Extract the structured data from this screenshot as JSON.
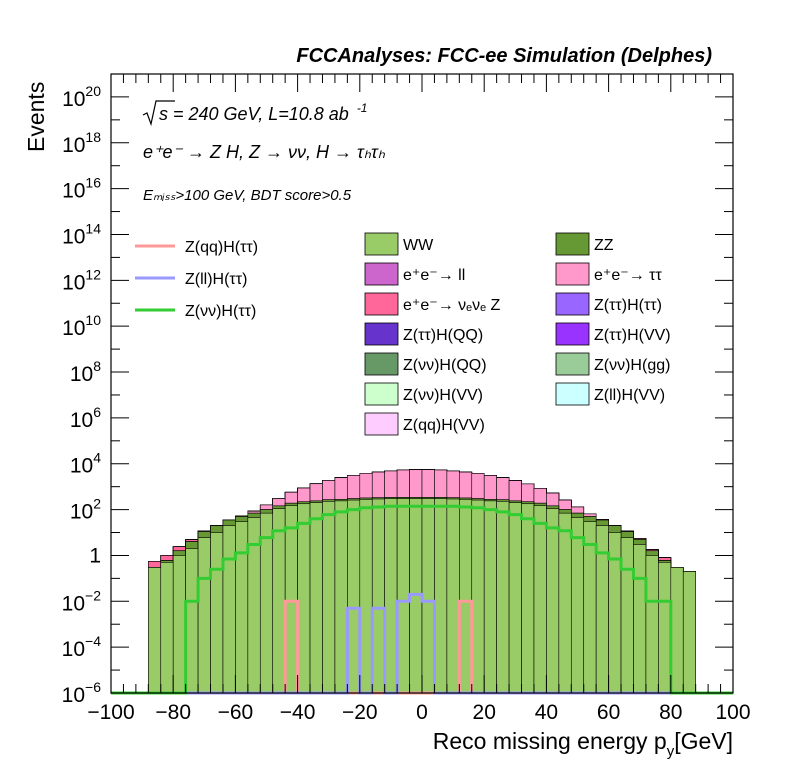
{
  "chart_data": {
    "type": "bar",
    "title": "FCCAnalyses: FCC-ee Simulation (Delphes)",
    "xlabel": "Reco missing energy p",
    "xlabel_sub": "y",
    "xlabel_unit": "[GeV]",
    "ylabel": "Events",
    "xlim": [
      -100,
      100
    ],
    "ylim": [
      1e-06,
      1e+21
    ],
    "yscale": "log",
    "x_ticks": [
      "−100",
      "−80",
      "−60",
      "−40",
      "−20",
      "0",
      "20",
      "40",
      "60",
      "80",
      "100"
    ],
    "annotations": {
      "energy_prefix": "s",
      "energy_text": " = 240 GeV, L=10.8 ab",
      "lumi_exp": "-1",
      "process_line": "e⁺e⁻ → Z H, Z → νν, H → τₕτₕ",
      "cuts_line": "Eₘᵢₛₛ>100 GeV, BDT score>0.5"
    },
    "bin_edges_range": [
      -100,
      100
    ],
    "bin_width": 4,
    "bin_centers": [
      -98,
      -94,
      -90,
      -86,
      -82,
      -78,
      -74,
      -70,
      -66,
      -62,
      -58,
      -54,
      -50,
      -46,
      -42,
      -38,
      -34,
      -30,
      -26,
      -22,
      -18,
      -14,
      -10,
      -6,
      -2,
      2,
      6,
      10,
      14,
      18,
      22,
      26,
      30,
      34,
      38,
      42,
      46,
      50,
      54,
      58,
      62,
      66,
      70,
      74,
      78,
      82,
      86,
      90,
      94,
      98
    ],
    "stack": [
      {
        "name": "WW",
        "color": "#99cc66",
        "values": [
          0,
          0,
          0,
          0.3,
          0.5,
          1,
          2,
          6,
          10,
          20,
          30,
          45,
          70,
          110,
          150,
          180,
          200,
          230,
          240,
          260,
          280,
          290,
          300,
          300,
          300,
          300,
          300,
          290,
          280,
          260,
          240,
          230,
          200,
          180,
          150,
          110,
          70,
          45,
          30,
          20,
          10,
          6,
          3,
          1,
          0.5,
          0.3,
          0.2,
          0,
          0,
          0
        ]
      },
      {
        "name": "ZZ",
        "color": "#669933",
        "values": [
          0,
          0,
          0,
          0,
          0.1,
          0.6,
          2,
          5,
          10,
          15,
          20,
          25,
          30,
          35,
          40,
          40,
          40,
          40,
          40,
          40,
          40,
          40,
          40,
          40,
          40,
          40,
          40,
          40,
          40,
          40,
          40,
          40,
          40,
          40,
          40,
          35,
          30,
          25,
          20,
          15,
          10,
          5,
          2,
          0.6,
          0.1,
          0,
          0,
          0,
          0,
          0
        ]
      },
      {
        "name": "e⁺e⁻→ ll",
        "color": "#cc66cc",
        "values": [
          0,
          0,
          0,
          0,
          0,
          0,
          0,
          0,
          0,
          0,
          0,
          0,
          0,
          0,
          0,
          0,
          0,
          0,
          0,
          0,
          0,
          0,
          0,
          0,
          0,
          0,
          0,
          0,
          0,
          0,
          0,
          0,
          0,
          0,
          0,
          0,
          0,
          0,
          0,
          0,
          0,
          0,
          0,
          0,
          0,
          0,
          0,
          0,
          0,
          0
        ]
      },
      {
        "name": "e⁺e⁻→ ττ",
        "color": "#ff99cc",
        "values": [
          0,
          0,
          0,
          0,
          0,
          0,
          0,
          0,
          0,
          0,
          2,
          15,
          60,
          160,
          380,
          650,
          1100,
          1600,
          2200,
          2800,
          3500,
          4000,
          4500,
          5000,
          5200,
          5200,
          5000,
          4500,
          4000,
          3500,
          2800,
          2200,
          1600,
          1100,
          650,
          380,
          160,
          60,
          15,
          2,
          0,
          0,
          0,
          0,
          0,
          0,
          0,
          0,
          0,
          0
        ]
      },
      {
        "name": "e⁺e⁻→ νₑνₑ Z",
        "color": "#ff6699",
        "values": [
          0,
          0,
          0,
          0.25,
          0.4,
          0.8,
          0.9,
          0.8,
          0.4,
          0.4,
          0.2,
          0.35,
          0.3,
          0.3,
          0.35,
          0.3,
          0.25,
          0.3,
          0.3,
          0.3,
          0.35,
          0.3,
          0.5,
          1.2,
          0.7,
          0.6,
          0.4,
          0.6,
          0.3,
          0.3,
          0.3,
          0.3,
          0.3,
          0.3,
          0.3,
          0.3,
          0.25,
          0.3,
          0.2,
          0.4,
          0.4,
          0.5,
          0.5,
          0.2,
          0.2,
          0,
          0,
          0,
          0,
          0
        ]
      },
      {
        "name": "Z(ττ)H(ττ)",
        "color": "#9966ff",
        "values": [
          0,
          0,
          0,
          0,
          0,
          0,
          0,
          0,
          0,
          0,
          0,
          0,
          0,
          0,
          0,
          0,
          0,
          0,
          0,
          0,
          0,
          0,
          0,
          0,
          0,
          0,
          0,
          0,
          0,
          0,
          0,
          0,
          0,
          0,
          0,
          0,
          0.01,
          0.02,
          0.04,
          0.03,
          0.05,
          0.02,
          0,
          0,
          0,
          0,
          0,
          0,
          0,
          0
        ]
      },
      {
        "name": "Z(ττ)H(QQ)",
        "color": "#6633cc",
        "values": [
          0,
          0,
          0,
          0,
          0,
          0,
          0,
          0,
          0,
          0,
          0,
          0,
          0,
          0,
          0,
          0,
          0,
          0,
          0,
          0,
          0,
          0,
          0,
          0,
          0,
          0,
          0,
          0,
          0,
          0,
          0.0001,
          0,
          0,
          0,
          0,
          0,
          0,
          0,
          0,
          0,
          0,
          0,
          0,
          0,
          0,
          0,
          0,
          0,
          0,
          0
        ]
      },
      {
        "name": "Z(ττ)H(VV)",
        "color": "#9933ff",
        "values": [
          0,
          0,
          0,
          0,
          0,
          0,
          0,
          0,
          0,
          0,
          0,
          0,
          0,
          0,
          0,
          0,
          0,
          0,
          0,
          0,
          0,
          0,
          0,
          0,
          0,
          0,
          0,
          0,
          0,
          0,
          0,
          0,
          0,
          0,
          0,
          0,
          0,
          0,
          0,
          0,
          0,
          0,
          0,
          0,
          0,
          0,
          0,
          0,
          0,
          0
        ]
      },
      {
        "name": "Z(νν)H(QQ)",
        "color": "#669966",
        "values": [
          0,
          0,
          0,
          0,
          0,
          0,
          0,
          0,
          0,
          0,
          0,
          0,
          0,
          0.02,
          0.04,
          0.05,
          0.06,
          0.05,
          0.03,
          0.04,
          0.05,
          0.1,
          0.08,
          0.07,
          0.05,
          0.07,
          0.07,
          0.06,
          0.06,
          0.05,
          0.04,
          0.04,
          0.04,
          0.05,
          0.05,
          0.03,
          0.02,
          0,
          0,
          0,
          0,
          0,
          0,
          0,
          0,
          0,
          0,
          0,
          0,
          0
        ]
      },
      {
        "name": "Z(νν)H(gg)",
        "color": "#99cc99",
        "values": [
          0,
          0,
          0,
          0,
          0,
          0,
          0,
          0,
          0,
          0,
          0,
          0,
          0,
          0,
          0,
          0,
          0,
          0,
          0,
          0,
          0,
          0,
          0,
          0,
          0,
          0,
          0,
          0,
          0,
          0,
          0,
          0,
          0,
          0,
          0,
          0,
          0,
          0,
          0,
          0,
          0,
          0,
          0,
          0,
          0,
          0,
          0,
          0,
          0,
          0
        ]
      },
      {
        "name": "Z(νν)H(VV)",
        "color": "#ccffcc",
        "values": [
          0,
          0,
          0,
          0,
          0,
          0,
          0,
          0,
          0,
          0.003,
          0.008,
          0.008,
          0,
          0,
          0,
          0,
          0,
          0,
          0,
          0,
          0,
          0,
          0,
          0,
          0,
          0,
          0,
          0,
          0,
          0,
          0,
          0,
          0,
          0,
          0,
          0,
          0,
          0,
          0,
          0,
          0,
          0,
          0,
          0,
          0,
          0,
          0,
          0,
          0,
          0
        ]
      },
      {
        "name": "Z(ll)H(VV)",
        "color": "#ccffff",
        "values": [
          0,
          0,
          0,
          0,
          0,
          0,
          0,
          0,
          0,
          0,
          0,
          0,
          0,
          0,
          0,
          0,
          0,
          0,
          0,
          0,
          0,
          0,
          0.03,
          0,
          0,
          0,
          0,
          0,
          0,
          0,
          0,
          0,
          0,
          0,
          0,
          0,
          0,
          0,
          0,
          0,
          0,
          0,
          0,
          0,
          0,
          0,
          0,
          0,
          0,
          0
        ]
      },
      {
        "name": "Z(qq)H(VV)",
        "color": "#ffccff",
        "values": [
          0,
          0,
          0,
          0,
          0,
          0,
          0,
          0,
          0,
          0,
          0,
          0,
          0,
          0,
          0,
          0,
          0,
          0,
          0,
          0,
          0,
          0,
          0,
          0,
          0,
          0,
          0,
          0,
          0,
          0,
          0,
          0,
          0,
          0,
          0,
          0,
          0,
          0,
          0,
          0,
          0,
          0,
          0,
          0,
          0,
          0,
          0,
          0,
          0,
          0
        ]
      }
    ],
    "signals": [
      {
        "name": "Z(qq)H(ττ)",
        "color": "#ff9999",
        "values": [
          0,
          0,
          0,
          0,
          0,
          0,
          0,
          0,
          0,
          0,
          0,
          0,
          0,
          0,
          0.01,
          0,
          0,
          0,
          0,
          0,
          0,
          0,
          0,
          0,
          0,
          0,
          0,
          0,
          0.01,
          0,
          0,
          0,
          0,
          0,
          0,
          0,
          0,
          0,
          0,
          0,
          0,
          0,
          0,
          0,
          0,
          0,
          0,
          0,
          0,
          0
        ]
      },
      {
        "name": "Z(ll)H(ττ)",
        "color": "#9999ff",
        "values": [
          0,
          0,
          0,
          0,
          0,
          0,
          0,
          0,
          0,
          0,
          0,
          0,
          0,
          0,
          0,
          0,
          0,
          0,
          0,
          0.005,
          0,
          0.005,
          0,
          0.01,
          0.02,
          0.01,
          0,
          0,
          0,
          0,
          0,
          0,
          0,
          0,
          0,
          0,
          0,
          0,
          0,
          0,
          0,
          0,
          0,
          0,
          0,
          0,
          0,
          0,
          0,
          0
        ]
      },
      {
        "name": "Z(νν)H(ττ)",
        "color": "#33cc33",
        "values": [
          0,
          0,
          0,
          0,
          0,
          0,
          0.01,
          0.1,
          0.25,
          0.7,
          1.3,
          3,
          6,
          12,
          16,
          25,
          40,
          60,
          80,
          100,
          120,
          130,
          140,
          140,
          140,
          140,
          140,
          140,
          130,
          120,
          100,
          80,
          60,
          40,
          25,
          16,
          12,
          6,
          3,
          1.3,
          0.7,
          0.25,
          0.1,
          0.01,
          0.01,
          0,
          0,
          0,
          0,
          0
        ]
      }
    ],
    "legend": {
      "signals": [
        "Z(qq)H(ττ)",
        "Z(ll)H(ττ)",
        "Z(νν)H(ττ)"
      ],
      "col1": [
        "WW",
        "e⁺e⁻→ ll",
        "e⁺e⁻→ νₑνₑ Z",
        "Z(ττ)H(QQ)",
        "Z(νν)H(QQ)",
        "Z(νν)H(VV)",
        "Z(qq)H(VV)"
      ],
      "col2": [
        "ZZ",
        "e⁺e⁻→ ττ",
        "Z(ττ)H(ττ)",
        "Z(ττ)H(VV)",
        "Z(νν)H(gg)",
        "Z(ll)H(VV)"
      ]
    },
    "grid": false,
    "legend_position": "top"
  }
}
